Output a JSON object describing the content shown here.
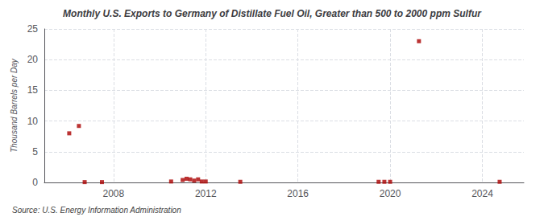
{
  "chart_data": {
    "type": "scatter",
    "title": "Monthly U.S. Exports to Germany of Distillate Fuel Oil, Greater than 500 to 2000 ppm Sulfur",
    "ylabel": "Thousand Barrels per Day",
    "source": "Source: U.S. Energy Information Administration",
    "x": [
      2006.08,
      2006.5,
      2006.75,
      2007.5,
      2010.5,
      2011.0,
      2011.17,
      2011.33,
      2011.5,
      2011.67,
      2011.83,
      2012.0,
      2013.5,
      2021.25,
      2024.75,
      2019.5,
      2019.75,
      2020.0
    ],
    "values": [
      8.0,
      9.2,
      0.05,
      0.05,
      0.15,
      0.4,
      0.6,
      0.5,
      0.3,
      0.5,
      0.15,
      0.15,
      0.1,
      23.0,
      0.1,
      0.1,
      0.1,
      0.1
    ],
    "color": "#aa0000",
    "marker": "square",
    "xlim": [
      2005.0,
      2025.8
    ],
    "xticks": [
      2008,
      2012,
      2016,
      2020,
      2024
    ],
    "ylim": [
      0,
      25
    ],
    "yticks": [
      0,
      5,
      10,
      15,
      20,
      25
    ],
    "grid": true
  }
}
